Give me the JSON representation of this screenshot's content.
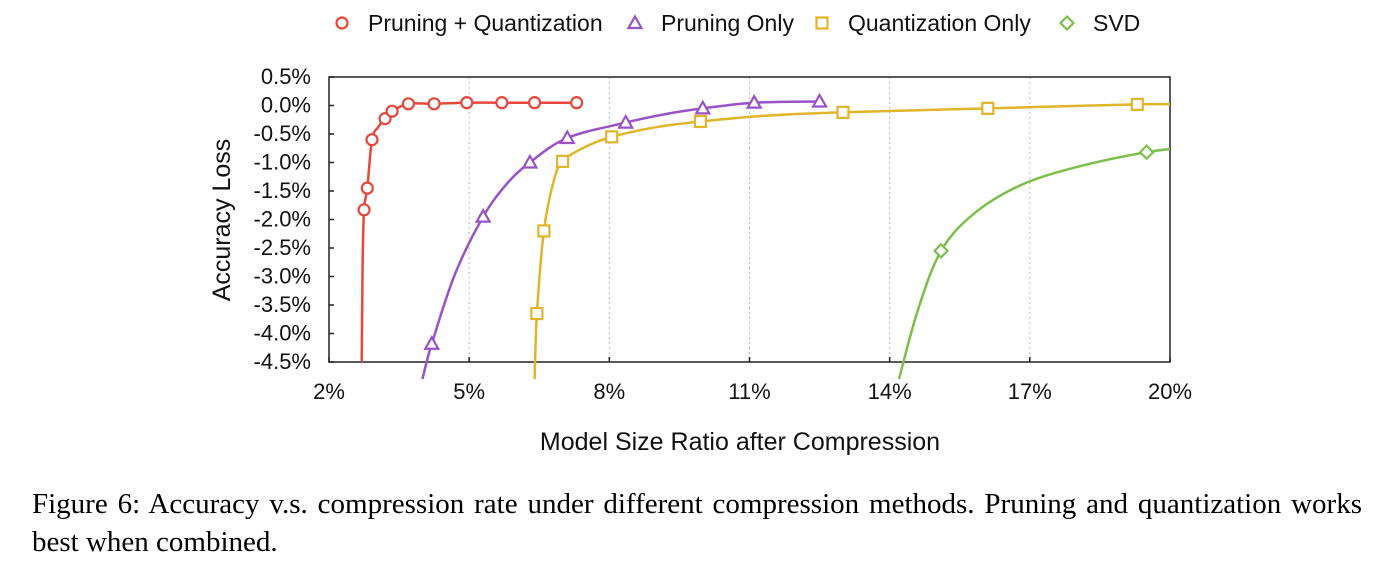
{
  "chart_data": {
    "type": "line",
    "title": "",
    "xlabel": "Model Size Ratio after Compression",
    "ylabel": "Accuracy Loss",
    "xlim": [
      2,
      20
    ],
    "ylim": [
      -4.5,
      0.5
    ],
    "x_ticks": [
      "2%",
      "5%",
      "8%",
      "11%",
      "14%",
      "17%",
      "20%"
    ],
    "x_tick_values": [
      2,
      5,
      8,
      11,
      14,
      17,
      20
    ],
    "y_ticks": [
      "0.5%",
      "0.0%",
      "-0.5%",
      "-1.0%",
      "-1.5%",
      "-2.0%",
      "-2.5%",
      "-3.0%",
      "-3.5%",
      "-4.0%",
      "-4.5%"
    ],
    "y_tick_values": [
      0.5,
      0.0,
      -0.5,
      -1.0,
      -1.5,
      -2.0,
      -2.5,
      -3.0,
      -3.5,
      -4.0,
      -4.5
    ],
    "grid": "vertical-dotted",
    "legend_position": "top",
    "series": [
      {
        "name": "Pruning + Quantization",
        "color": "#e8473c",
        "marker": "circle",
        "points": [
          [
            2.75,
            -1.83
          ],
          [
            2.82,
            -1.45
          ],
          [
            2.92,
            -0.6
          ],
          [
            3.2,
            -0.23
          ],
          [
            3.35,
            -0.1
          ],
          [
            3.7,
            0.03
          ],
          [
            4.25,
            0.03
          ],
          [
            4.95,
            0.05
          ],
          [
            5.7,
            0.05
          ],
          [
            6.4,
            0.05
          ],
          [
            7.3,
            0.05
          ]
        ],
        "curve": [
          [
            2.7,
            -4.5
          ],
          [
            2.72,
            -2.8
          ],
          [
            2.75,
            -1.83
          ],
          [
            2.82,
            -1.45
          ],
          [
            2.92,
            -0.6
          ],
          [
            3.05,
            -0.38
          ],
          [
            3.2,
            -0.23
          ],
          [
            3.35,
            -0.1
          ],
          [
            3.7,
            0.03
          ],
          [
            4.25,
            0.03
          ],
          [
            4.95,
            0.05
          ],
          [
            5.7,
            0.05
          ],
          [
            6.4,
            0.05
          ],
          [
            7.3,
            0.05
          ]
        ]
      },
      {
        "name": "Pruning Only",
        "color": "#9a52c8",
        "marker": "triangle",
        "points": [
          [
            4.2,
            -4.18
          ],
          [
            5.3,
            -1.95
          ],
          [
            6.3,
            -1.0
          ],
          [
            7.1,
            -0.57
          ],
          [
            8.35,
            -0.3
          ],
          [
            10.0,
            -0.05
          ],
          [
            11.1,
            0.05
          ],
          [
            12.5,
            0.07
          ]
        ],
        "curve": [
          [
            4.0,
            -4.8
          ],
          [
            4.2,
            -4.18
          ],
          [
            4.7,
            -2.95
          ],
          [
            5.3,
            -1.95
          ],
          [
            5.8,
            -1.38
          ],
          [
            6.3,
            -1.0
          ],
          [
            7.1,
            -0.57
          ],
          [
            8.35,
            -0.3
          ],
          [
            9.2,
            -0.15
          ],
          [
            10.0,
            -0.05
          ],
          [
            11.1,
            0.05
          ],
          [
            12.5,
            0.07
          ]
        ]
      },
      {
        "name": "Quantization Only",
        "color": "#e0b52a",
        "marker": "square",
        "points": [
          [
            6.45,
            -3.65
          ],
          [
            6.6,
            -2.2
          ],
          [
            7.0,
            -0.98
          ],
          [
            8.05,
            -0.55
          ],
          [
            9.95,
            -0.28
          ],
          [
            13.0,
            -0.12
          ],
          [
            16.1,
            -0.05
          ],
          [
            19.3,
            0.02
          ]
        ],
        "curve": [
          [
            6.4,
            -4.8
          ],
          [
            6.45,
            -3.65
          ],
          [
            6.6,
            -2.2
          ],
          [
            6.8,
            -1.35
          ],
          [
            7.0,
            -0.98
          ],
          [
            7.5,
            -0.72
          ],
          [
            8.05,
            -0.55
          ],
          [
            9.0,
            -0.38
          ],
          [
            9.95,
            -0.28
          ],
          [
            11.5,
            -0.17
          ],
          [
            13.0,
            -0.12
          ],
          [
            16.1,
            -0.05
          ],
          [
            19.3,
            0.02
          ],
          [
            20.2,
            0.02
          ]
        ]
      },
      {
        "name": "SVD",
        "color": "#7cbf4a",
        "marker": "diamond",
        "points": [
          [
            15.1,
            -2.55
          ],
          [
            19.5,
            -0.82
          ]
        ],
        "curve": [
          [
            14.2,
            -4.8
          ],
          [
            14.6,
            -3.6
          ],
          [
            15.1,
            -2.55
          ],
          [
            15.8,
            -1.9
          ],
          [
            16.8,
            -1.4
          ],
          [
            18.0,
            -1.08
          ],
          [
            19.5,
            -0.82
          ],
          [
            20.7,
            -0.7
          ]
        ]
      }
    ]
  },
  "caption": {
    "text": "Figure 6: Accuracy v.s. compression rate under different compression methods. Pruning and quantization works best when combined."
  }
}
